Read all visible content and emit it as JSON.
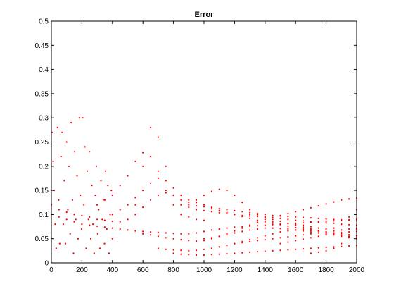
{
  "chart_data": {
    "type": "scatter",
    "title": "Error",
    "xlabel": "",
    "ylabel": "",
    "xlim": [
      0,
      2000
    ],
    "ylim": [
      0,
      0.5
    ],
    "x_ticks": [
      0,
      200,
      400,
      600,
      800,
      1000,
      1200,
      1400,
      1600,
      1800,
      2000
    ],
    "y_ticks": [
      0,
      0.05,
      0.1,
      0.15,
      0.2,
      0.25,
      0.3,
      0.35,
      0.4,
      0.45,
      0.5
    ],
    "grid": false,
    "marker_color": "#ff0000",
    "series": [
      {
        "x": [
          0,
          50,
          100,
          150,
          200,
          250,
          300,
          350,
          400,
          450,
          500,
          550,
          600,
          650,
          700,
          750,
          800,
          850,
          900,
          950,
          1000,
          1050,
          1100,
          1150,
          1200,
          1250,
          1300,
          1350,
          1400,
          1450,
          1500,
          1550,
          1600,
          1650,
          1700,
          1750,
          1800,
          1850,
          1900,
          1950,
          2000
        ],
        "y": [
          0.12,
          0.11,
          0.105,
          0.1,
          0.098,
          0.095,
          0.09,
          0.088,
          0.086,
          0.085,
          0.09,
          0.12,
          0.2,
          0.28,
          0.26,
          0.2,
          0.14,
          0.12,
          0.115,
          0.11,
          0.108,
          0.106,
          0.104,
          0.102,
          0.1,
          0.098,
          0.097,
          0.096,
          0.095,
          0.094,
          0.092,
          0.09,
          0.088,
          0.087,
          0.085,
          0.084,
          0.083,
          0.082,
          0.08,
          0.079,
          0.078
        ]
      },
      {
        "x": [
          300,
          350,
          400,
          450,
          500,
          550,
          600,
          650,
          700,
          750,
          800,
          850,
          900,
          950,
          1000
        ],
        "y": [
          0.12,
          0.13,
          0.14,
          0.16,
          0.18,
          0.21,
          0.228,
          0.22,
          0.19,
          0.15,
          0.12,
          0.1,
          0.095,
          0.09,
          0.088
        ]
      },
      {
        "x": [
          400,
          450,
          500,
          550,
          600,
          650,
          700,
          750,
          800,
          850,
          900,
          950,
          1000,
          1050,
          1100,
          1150,
          1200,
          1250,
          1300,
          1350,
          1400,
          1450,
          1500,
          1550,
          1600,
          1650,
          1700,
          1750,
          1800,
          1850,
          1900,
          1950,
          2000
        ],
        "y": [
          0.1,
          0.11,
          0.12,
          0.135,
          0.15,
          0.165,
          0.175,
          0.17,
          0.155,
          0.14,
          0.13,
          0.125,
          0.12,
          0.115,
          0.112,
          0.11,
          0.108,
          0.106,
          0.104,
          0.102,
          0.1,
          0.098,
          0.097,
          0.096,
          0.095,
          0.094,
          0.093,
          0.092,
          0.091,
          0.09,
          0.089,
          0.088,
          0.087
        ]
      },
      {
        "x": [
          500,
          550,
          600,
          650,
          700,
          750,
          800,
          850,
          900,
          950,
          1000,
          1050,
          1100,
          1150,
          1200,
          1250,
          1300,
          1350,
          1400,
          1450,
          1500
        ],
        "y": [
          0.09,
          0.1,
          0.115,
          0.13,
          0.14,
          0.145,
          0.14,
          0.13,
          0.125,
          0.13,
          0.14,
          0.148,
          0.152,
          0.15,
          0.14,
          0.125,
          0.11,
          0.1,
          0.09,
          0.085,
          0.08
        ]
      },
      {
        "x": [
          0,
          50,
          100,
          150,
          200,
          250,
          300,
          350,
          400,
          450,
          500,
          550,
          600,
          650,
          700,
          750,
          800,
          850,
          900,
          950,
          1000,
          1050,
          1100,
          1150,
          1200,
          1250,
          1300,
          1350,
          1400,
          1450,
          1500,
          1550,
          1600,
          1650,
          1700,
          1750,
          1800,
          1850,
          1900,
          1950,
          2000
        ],
        "y": [
          0.1,
          0.095,
          0.09,
          0.085,
          0.08,
          0.078,
          0.076,
          0.074,
          0.072,
          0.07,
          0.068,
          0.066,
          0.065,
          0.064,
          0.063,
          0.062,
          0.061,
          0.06,
          0.06,
          0.062,
          0.065,
          0.068,
          0.07,
          0.072,
          0.074,
          0.075,
          0.076,
          0.077,
          0.078,
          0.079,
          0.08,
          0.081,
          0.082,
          0.083,
          0.084,
          0.085,
          0.086,
          0.087,
          0.088,
          0.089,
          0.09
        ]
      },
      {
        "x": [
          600,
          650,
          700,
          750,
          800,
          850,
          900,
          950,
          1000,
          1050,
          1100,
          1150,
          1200,
          1250,
          1300,
          1350,
          1400,
          1450,
          1500,
          1550,
          1600,
          1650,
          1700,
          1750,
          1800,
          1850,
          1900,
          1950,
          2000
        ],
        "y": [
          0.06,
          0.058,
          0.055,
          0.052,
          0.05,
          0.048,
          0.046,
          0.045,
          0.046,
          0.05,
          0.055,
          0.06,
          0.066,
          0.072,
          0.078,
          0.084,
          0.09,
          0.094,
          0.098,
          0.102,
          0.106,
          0.11,
          0.114,
          0.118,
          0.122,
          0.126,
          0.13,
          0.132,
          0.134
        ]
      },
      {
        "x": [
          700,
          750,
          800,
          850,
          900,
          950,
          1000,
          1050,
          1100,
          1150,
          1200,
          1250,
          1300,
          1350,
          1400,
          1450,
          1500,
          1550,
          1600,
          1650,
          1700,
          1750,
          1800,
          1850,
          1900,
          1950,
          2000
        ],
        "y": [
          0.03,
          0.028,
          0.027,
          0.026,
          0.025,
          0.026,
          0.028,
          0.03,
          0.033,
          0.036,
          0.04,
          0.044,
          0.048,
          0.052,
          0.056,
          0.06,
          0.064,
          0.066,
          0.068,
          0.068,
          0.067,
          0.066,
          0.064,
          0.062,
          0.06,
          0.058,
          0.056
        ]
      },
      {
        "x": [
          800,
          850,
          900,
          950,
          1000,
          1050,
          1100,
          1150,
          1200,
          1250,
          1300,
          1350,
          1400,
          1450,
          1500,
          1550,
          1600,
          1650,
          1700,
          1750,
          1800,
          1850,
          1900,
          1950,
          2000
        ],
        "y": [
          0.02,
          0.018,
          0.017,
          0.016,
          0.016,
          0.017,
          0.018,
          0.019,
          0.02,
          0.021,
          0.022,
          0.023,
          0.024,
          0.025,
          0.026,
          0.027,
          0.028,
          0.029,
          0.03,
          0.031,
          0.032,
          0.033,
          0.034,
          0.035,
          0.036
        ]
      },
      {
        "x": [
          900,
          950,
          1000,
          1050,
          1100,
          1150,
          1200,
          1250,
          1300,
          1350,
          1400,
          1450,
          1500,
          1550,
          1600,
          1650,
          1700,
          1750,
          1800,
          1850,
          1900,
          1950,
          2000
        ],
        "y": [
          0.12,
          0.118,
          0.116,
          0.112,
          0.108,
          0.104,
          0.1,
          0.096,
          0.092,
          0.088,
          0.085,
          0.082,
          0.079,
          0.076,
          0.073,
          0.07,
          0.068,
          0.066,
          0.064,
          0.062,
          0.06,
          0.058,
          0.056
        ]
      },
      {
        "x": [
          1000,
          1050,
          1100,
          1150,
          1200,
          1250,
          1300,
          1350,
          1400,
          1450,
          1500,
          1550,
          1600,
          1650,
          1700,
          1750,
          1800,
          1850,
          1900,
          1950,
          2000
        ],
        "y": [
          0.05,
          0.052,
          0.055,
          0.058,
          0.062,
          0.065,
          0.068,
          0.07,
          0.072,
          0.072,
          0.071,
          0.07,
          0.068,
          0.066,
          0.064,
          0.062,
          0.06,
          0.058,
          0.056,
          0.054,
          0.052
        ]
      },
      {
        "x": [
          1200,
          1250,
          1300,
          1350,
          1400,
          1450,
          1500,
          1550,
          1600,
          1650,
          1700,
          1750,
          1800,
          1850,
          1900,
          1950,
          2000
        ],
        "y": [
          0.04,
          0.042,
          0.044,
          0.046,
          0.048,
          0.05,
          0.052,
          0.054,
          0.056,
          0.058,
          0.06,
          0.062,
          0.064,
          0.066,
          0.068,
          0.07,
          0.072
        ]
      },
      {
        "x": [
          1300,
          1350,
          1400,
          1450,
          1500,
          1550,
          1600,
          1650,
          1700,
          1750,
          1800,
          1850,
          1900,
          1950,
          2000
        ],
        "y": [
          0.1,
          0.097,
          0.094,
          0.09,
          0.086,
          0.082,
          0.078,
          0.074,
          0.07,
          0.066,
          0.062,
          0.058,
          0.055,
          0.052,
          0.05
        ]
      },
      {
        "x": [
          1500,
          1550,
          1600,
          1650,
          1700,
          1750,
          1800,
          1850,
          1900,
          1950,
          2000
        ],
        "y": [
          0.04,
          0.043,
          0.046,
          0.049,
          0.052,
          0.055,
          0.058,
          0.061,
          0.063,
          0.064,
          0.065
        ]
      },
      {
        "x": [
          1600,
          1650,
          1700,
          1750,
          1800,
          1850,
          1900,
          1950,
          2000
        ],
        "y": [
          0.08,
          0.078,
          0.075,
          0.072,
          0.07,
          0.072,
          0.08,
          0.095,
          0.11
        ]
      },
      {
        "x": [
          1700,
          1750,
          1800,
          1850,
          1900,
          1950,
          2000
        ],
        "y": [
          0.02,
          0.022,
          0.025,
          0.03,
          0.04,
          0.055,
          0.07
        ]
      },
      {
        "x": [
          5,
          12,
          18,
          25,
          32,
          40,
          48,
          55,
          63,
          70,
          78,
          85,
          92,
          100,
          108,
          115,
          123,
          130,
          138,
          145,
          152,
          160,
          168,
          175,
          183,
          190,
          198,
          205,
          213,
          220,
          228,
          235,
          243,
          250,
          258,
          265,
          273,
          280,
          288,
          295,
          303,
          310,
          318,
          325,
          333,
          340,
          348,
          355,
          363,
          370,
          378,
          385,
          393,
          400
        ],
        "y": [
          0.27,
          0.21,
          0.15,
          0.08,
          0.03,
          0.28,
          0.13,
          0.04,
          0.22,
          0.27,
          0.08,
          0.17,
          0.04,
          0.25,
          0.11,
          0.2,
          0.06,
          0.29,
          0.13,
          0.02,
          0.23,
          0.09,
          0.18,
          0.05,
          0.3,
          0.14,
          0.07,
          0.3,
          0.12,
          0.24,
          0.03,
          0.19,
          0.09,
          0.23,
          0.05,
          0.16,
          0.08,
          0.02,
          0.14,
          0.2,
          0.06,
          0.11,
          0.03,
          0.17,
          0.09,
          0.13,
          0.04,
          0.19,
          0.07,
          0.16,
          0.02,
          0.1,
          0.15,
          0.05
        ]
      }
    ]
  }
}
